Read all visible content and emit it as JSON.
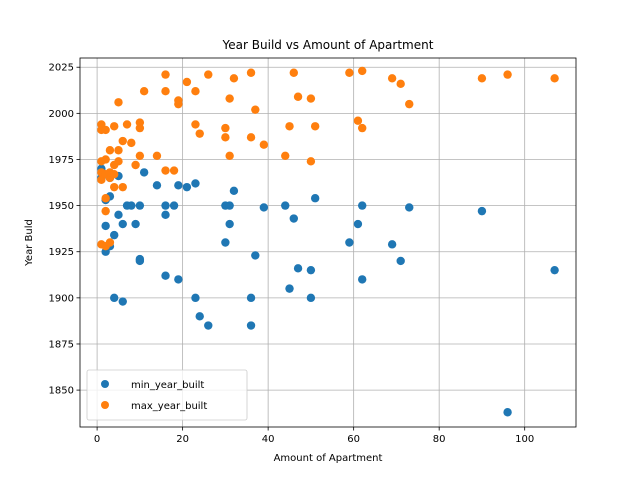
{
  "chart_data": {
    "type": "scatter",
    "title": "Year Build vs Amount of Apartment",
    "xlabel": "Amount of Apartment",
    "ylabel": "Year Buld",
    "xlim": [
      -4,
      112
    ],
    "ylim": [
      1830,
      2030
    ],
    "xticks": [
      0,
      20,
      40,
      60,
      80,
      100
    ],
    "yticks": [
      1850,
      1875,
      1900,
      1925,
      1950,
      1975,
      2000,
      2025
    ],
    "grid": true,
    "legend_position": "lower-left",
    "series": [
      {
        "name": "min_year_built",
        "color": "#1f77b4",
        "points": [
          [
            1,
            1965
          ],
          [
            1,
            1970
          ],
          [
            2,
            1925
          ],
          [
            2,
            1939
          ],
          [
            2,
            1953
          ],
          [
            3,
            1928
          ],
          [
            3,
            1955
          ],
          [
            3,
            1965
          ],
          [
            4,
            1900
          ],
          [
            4,
            1934
          ],
          [
            5,
            1945
          ],
          [
            5,
            1966
          ],
          [
            6,
            1898
          ],
          [
            6,
            1940
          ],
          [
            7,
            1950
          ],
          [
            8,
            1950
          ],
          [
            9,
            1940
          ],
          [
            10,
            1920
          ],
          [
            10,
            1921
          ],
          [
            10,
            1950
          ],
          [
            11,
            1968
          ],
          [
            14,
            1961
          ],
          [
            16,
            1912
          ],
          [
            16,
            1945
          ],
          [
            16,
            1950
          ],
          [
            18,
            1950
          ],
          [
            19,
            1910
          ],
          [
            19,
            1961
          ],
          [
            21,
            1960
          ],
          [
            23,
            1900
          ],
          [
            23,
            1962
          ],
          [
            24,
            1890
          ],
          [
            26,
            1885
          ],
          [
            30,
            1930
          ],
          [
            30,
            1950
          ],
          [
            31,
            1940
          ],
          [
            31,
            1950
          ],
          [
            32,
            1958
          ],
          [
            36,
            1885
          ],
          [
            36,
            1900
          ],
          [
            37,
            1923
          ],
          [
            39,
            1949
          ],
          [
            44,
            1950
          ],
          [
            45,
            1905
          ],
          [
            46,
            1943
          ],
          [
            47,
            1916
          ],
          [
            50,
            1900
          ],
          [
            50,
            1915
          ],
          [
            51,
            1954
          ],
          [
            59,
            1930
          ],
          [
            61,
            1940
          ],
          [
            62,
            1910
          ],
          [
            62,
            1950
          ],
          [
            69,
            1929
          ],
          [
            71,
            1920
          ],
          [
            73,
            1949
          ],
          [
            90,
            1947
          ],
          [
            96,
            1838
          ],
          [
            107,
            1915
          ]
        ]
      },
      {
        "name": "max_year_built",
        "color": "#ff7f0e",
        "points": [
          [
            1,
            1929
          ],
          [
            1,
            1964
          ],
          [
            1,
            1968
          ],
          [
            1,
            1974
          ],
          [
            1,
            1991
          ],
          [
            1,
            1994
          ],
          [
            2,
            1928
          ],
          [
            2,
            1947
          ],
          [
            2,
            1954
          ],
          [
            2,
            1967
          ],
          [
            2,
            1975
          ],
          [
            2,
            1991
          ],
          [
            3,
            1930
          ],
          [
            3,
            1965
          ],
          [
            3,
            1968
          ],
          [
            3,
            1980
          ],
          [
            4,
            1960
          ],
          [
            4,
            1967
          ],
          [
            4,
            1972
          ],
          [
            4,
            1993
          ],
          [
            5,
            1974
          ],
          [
            5,
            1980
          ],
          [
            5,
            2006
          ],
          [
            6,
            1960
          ],
          [
            6,
            1985
          ],
          [
            7,
            1994
          ],
          [
            8,
            1984
          ],
          [
            9,
            1972
          ],
          [
            10,
            1977
          ],
          [
            10,
            1992
          ],
          [
            10,
            1995
          ],
          [
            11,
            2012
          ],
          [
            14,
            1977
          ],
          [
            16,
            1969
          ],
          [
            16,
            2012
          ],
          [
            16,
            2021
          ],
          [
            18,
            1969
          ],
          [
            19,
            2005
          ],
          [
            19,
            2007
          ],
          [
            21,
            2017
          ],
          [
            23,
            1994
          ],
          [
            23,
            2012
          ],
          [
            24,
            1989
          ],
          [
            26,
            2021
          ],
          [
            30,
            1987
          ],
          [
            30,
            1992
          ],
          [
            31,
            1977
          ],
          [
            31,
            2008
          ],
          [
            32,
            2019
          ],
          [
            36,
            1987
          ],
          [
            36,
            2022
          ],
          [
            37,
            2002
          ],
          [
            39,
            1983
          ],
          [
            44,
            1977
          ],
          [
            45,
            1993
          ],
          [
            46,
            2022
          ],
          [
            47,
            2009
          ],
          [
            50,
            1974
          ],
          [
            50,
            2008
          ],
          [
            51,
            1993
          ],
          [
            59,
            2022
          ],
          [
            61,
            1996
          ],
          [
            62,
            1992
          ],
          [
            62,
            2023
          ],
          [
            69,
            2019
          ],
          [
            71,
            2016
          ],
          [
            73,
            2005
          ],
          [
            90,
            2019
          ],
          [
            96,
            2021
          ],
          [
            107,
            2019
          ]
        ]
      }
    ]
  }
}
